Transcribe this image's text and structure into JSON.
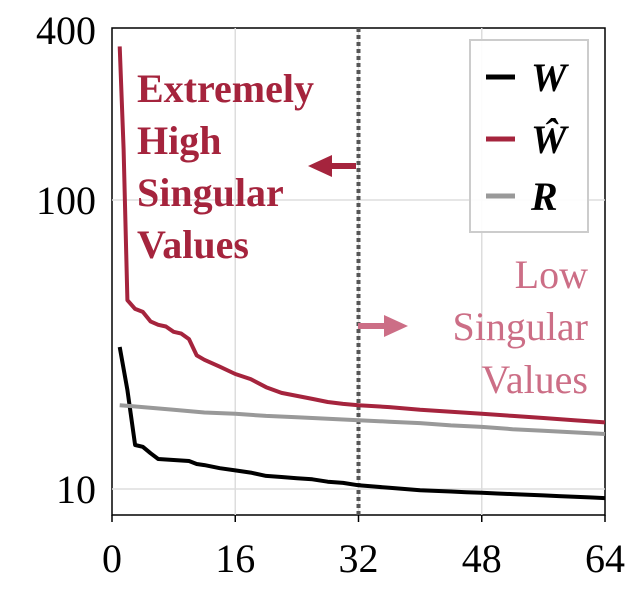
{
  "chart_data": {
    "type": "line",
    "title": "",
    "xlabel": "",
    "ylabel": "",
    "x_scale": "linear",
    "y_scale": "log",
    "xlim": [
      0,
      64
    ],
    "ylim": [
      8,
      400
    ],
    "x_ticks": [
      0,
      16,
      32,
      48,
      64
    ],
    "x_tick_labels": [
      "0",
      "16",
      "32",
      "48",
      "64"
    ],
    "y_ticks": [
      10,
      100,
      400
    ],
    "y_tick_labels": [
      "10",
      "100",
      "400"
    ],
    "grid": true,
    "legend_position": "top-right",
    "reference_line": {
      "x": 32,
      "style": "dotted",
      "color": "#555555"
    },
    "series": [
      {
        "name": "W",
        "color": "#000000",
        "x": [
          1,
          2,
          3,
          4,
          5,
          6,
          8,
          10,
          11,
          12,
          14,
          16,
          18,
          20,
          22,
          24,
          26,
          28,
          30,
          32,
          34,
          36,
          38,
          40,
          42,
          44,
          46,
          48,
          50,
          52,
          54,
          56,
          58,
          60,
          62,
          64
        ],
        "values": [
          31,
          22,
          14.2,
          14,
          13.3,
          12.7,
          12.6,
          12.5,
          12.2,
          12.1,
          11.8,
          11.6,
          11.4,
          11.1,
          11.0,
          10.9,
          10.8,
          10.6,
          10.5,
          10.3,
          10.2,
          10.1,
          10.0,
          9.9,
          9.85,
          9.8,
          9.75,
          9.7,
          9.65,
          9.6,
          9.55,
          9.5,
          9.45,
          9.4,
          9.35,
          9.3
        ]
      },
      {
        "name": "Ŵ",
        "color": "#a5243d",
        "x": [
          1,
          1.5,
          2,
          3,
          4,
          5,
          6,
          7,
          8,
          9,
          10,
          11,
          12,
          14,
          16,
          18,
          20,
          22,
          24,
          26,
          28,
          30,
          32,
          36,
          40,
          44,
          48,
          52,
          56,
          60,
          64
        ],
        "values": [
          340,
          150,
          45,
          42,
          41,
          38,
          37,
          36.5,
          35,
          34.5,
          33,
          29,
          28,
          26.5,
          25,
          24,
          22.5,
          21.5,
          21,
          20.5,
          20,
          19.7,
          19.5,
          19.2,
          18.8,
          18.5,
          18.2,
          17.9,
          17.6,
          17.3,
          17.0
        ]
      },
      {
        "name": "R",
        "color": "#999999",
        "x": [
          1,
          4,
          8,
          12,
          16,
          20,
          24,
          28,
          32,
          36,
          40,
          44,
          48,
          52,
          56,
          60,
          64
        ],
        "values": [
          19.5,
          19.2,
          18.8,
          18.4,
          18.2,
          17.9,
          17.7,
          17.5,
          17.3,
          17.1,
          16.9,
          16.6,
          16.4,
          16.1,
          15.9,
          15.7,
          15.5
        ]
      }
    ],
    "annotations": {
      "high": {
        "lines": [
          "Extremely",
          "High",
          "Singular",
          "Values"
        ],
        "color": "#a5243d",
        "arrow": "left"
      },
      "low": {
        "lines": [
          "Low",
          "Singular",
          "Values"
        ],
        "color": "#cc6e86",
        "arrow": "right"
      }
    }
  }
}
